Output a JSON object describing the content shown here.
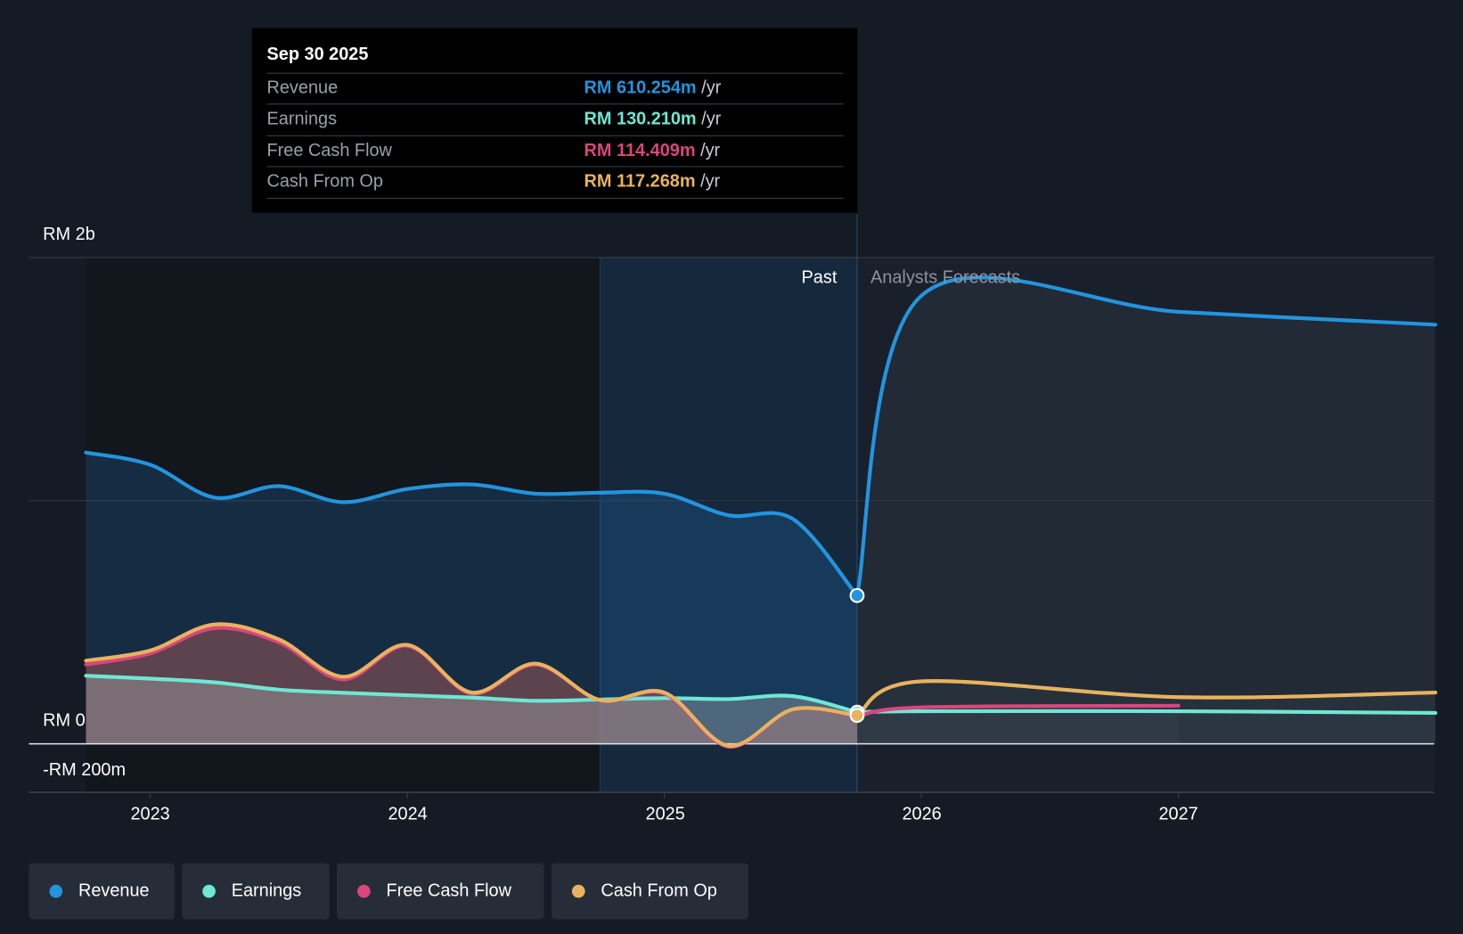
{
  "tooltip": {
    "date": "Sep 30 2025",
    "rows": [
      {
        "label": "Revenue",
        "value": "RM 610.254m",
        "unit": "/yr",
        "color": "#2394df"
      },
      {
        "label": "Earnings",
        "value": "RM 130.210m",
        "unit": "/yr",
        "color": "#6ee7d4"
      },
      {
        "label": "Free Cash Flow",
        "value": "RM 114.409m",
        "unit": "/yr",
        "color": "#d9467e"
      },
      {
        "label": "Cash From Op",
        "value": "RM 117.268m",
        "unit": "/yr",
        "color": "#e8b35f"
      }
    ]
  },
  "labels": {
    "past": "Past",
    "forecast": "Analysts Forecasts"
  },
  "legend": [
    {
      "label": "Revenue",
      "color": "#2394df"
    },
    {
      "label": "Earnings",
      "color": "#6ee7d4"
    },
    {
      "label": "Free Cash Flow",
      "color": "#d9467e"
    },
    {
      "label": "Cash From Op",
      "color": "#e8b35f"
    }
  ],
  "chart_data": {
    "type": "line",
    "ylabel_ticks": [
      "RM 2b",
      "RM 0",
      "-RM 200m"
    ],
    "xtick_labels": [
      "2023",
      "2024",
      "2025",
      "2026",
      "2027"
    ],
    "xticks": [
      2023,
      2024,
      2025,
      2026,
      2027
    ],
    "ylim_millions": [
      -200,
      2000
    ],
    "units": "RM millions per year",
    "past_end": 2025.75,
    "highlight_start": 2024.75,
    "series": [
      {
        "name": "Revenue",
        "color": "#2394df",
        "x": [
          2022.75,
          2023,
          2023.25,
          2023.5,
          2023.75,
          2024,
          2024.25,
          2024.5,
          2024.75,
          2025,
          2025.25,
          2025.5,
          2025.75
        ],
        "values": [
          1198,
          1148,
          1013,
          1060,
          994,
          1048,
          1067,
          1029,
          1033,
          1029,
          940,
          925,
          610
        ],
        "forecast_x": [
          2025.75,
          2026,
          2027,
          2028
        ],
        "forecast": [
          610,
          1843,
          1777,
          1724
        ]
      },
      {
        "name": "Earnings",
        "color": "#6ee7d4",
        "x": [
          2022.75,
          2023,
          2023.25,
          2023.5,
          2023.75,
          2024,
          2024.25,
          2024.5,
          2024.75,
          2025,
          2025.25,
          2025.5,
          2025.75
        ],
        "values": [
          280,
          268,
          253,
          223,
          210,
          200,
          190,
          177,
          182,
          188,
          184,
          196,
          130
        ],
        "forecast_x": [
          2025.75,
          2026,
          2027,
          2028
        ],
        "forecast": [
          130,
          134,
          134,
          127
        ]
      },
      {
        "name": "Free Cash Flow",
        "color": "#d9467e",
        "x": [
          2022.75,
          2023,
          2023.25,
          2023.5,
          2023.75,
          2024,
          2024.25,
          2024.5,
          2024.75,
          2025,
          2025.25,
          2025.5,
          2025.75
        ],
        "values": [
          326,
          372,
          476,
          418,
          265,
          403,
          207,
          326,
          180,
          207,
          -12,
          142,
          114
        ],
        "forecast_x": [
          2025.75,
          2026,
          2027
        ],
        "forecast": [
          114,
          150,
          157
        ]
      },
      {
        "name": "Cash From Op",
        "color": "#e8b35f",
        "x": [
          2022.75,
          2023,
          2023.25,
          2023.5,
          2023.75,
          2024,
          2024.25,
          2024.5,
          2024.75,
          2025,
          2025.25,
          2025.5,
          2025.75
        ],
        "values": [
          342,
          384,
          491,
          430,
          276,
          407,
          211,
          330,
          180,
          211,
          -8,
          142,
          117
        ],
        "forecast_x": [
          2025.75,
          2026,
          2027,
          2028
        ],
        "forecast": [
          117,
          257,
          192,
          211
        ]
      }
    ]
  }
}
